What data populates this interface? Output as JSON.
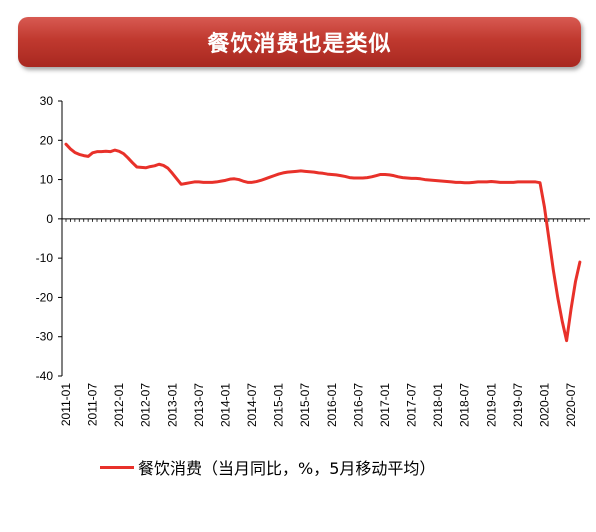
{
  "banner": {
    "title": "餐饮消费也是类似"
  },
  "colors": {
    "banner": "#c0392f",
    "line": "#e8312a",
    "axis": "#000000"
  },
  "chart_data": {
    "type": "line",
    "title": "餐饮消费也是类似",
    "xlabel": "",
    "ylabel": "",
    "ylim": [
      -40,
      30
    ],
    "yticks": [
      30,
      20,
      10,
      0,
      -10,
      -20,
      -30,
      -40
    ],
    "xtick_labels": [
      "2011-01",
      "2011-07",
      "2012-01",
      "2012-07",
      "2013-01",
      "2013-07",
      "2014-01",
      "2014-07",
      "2015-01",
      "2015-07",
      "2016-01",
      "2016-07",
      "2017-01",
      "2017-07",
      "2018-01",
      "2018-07",
      "2019-01",
      "2019-07",
      "2020-01",
      "2020-07"
    ],
    "grid": false,
    "legend_position": "bottom",
    "series": [
      {
        "name": "餐饮消费（当月同比，%，5月移动平均）",
        "points": [
          [
            "2011-01",
            19.0
          ],
          [
            "2011-02",
            17.8
          ],
          [
            "2011-03",
            16.9
          ],
          [
            "2011-04",
            16.4
          ],
          [
            "2011-05",
            16.1
          ],
          [
            "2011-06",
            15.9
          ],
          [
            "2011-07",
            16.8
          ],
          [
            "2011-08",
            17.1
          ],
          [
            "2011-09",
            17.1
          ],
          [
            "2011-10",
            17.2
          ],
          [
            "2011-11",
            17.1
          ],
          [
            "2011-12",
            17.5
          ],
          [
            "2012-01",
            17.2
          ],
          [
            "2012-02",
            16.6
          ],
          [
            "2012-03",
            15.5
          ],
          [
            "2012-04",
            14.3
          ],
          [
            "2012-05",
            13.2
          ],
          [
            "2012-06",
            13.1
          ],
          [
            "2012-07",
            13.0
          ],
          [
            "2012-08",
            13.3
          ],
          [
            "2012-09",
            13.5
          ],
          [
            "2012-10",
            13.9
          ],
          [
            "2012-11",
            13.6
          ],
          [
            "2012-12",
            12.9
          ],
          [
            "2013-01",
            11.6
          ],
          [
            "2013-02",
            10.2
          ],
          [
            "2013-03",
            8.8
          ],
          [
            "2013-04",
            9.0
          ],
          [
            "2013-05",
            9.2
          ],
          [
            "2013-06",
            9.4
          ],
          [
            "2013-07",
            9.4
          ],
          [
            "2013-08",
            9.3
          ],
          [
            "2013-09",
            9.3
          ],
          [
            "2013-10",
            9.3
          ],
          [
            "2013-11",
            9.4
          ],
          [
            "2013-12",
            9.6
          ],
          [
            "2014-01",
            9.8
          ],
          [
            "2014-02",
            10.1
          ],
          [
            "2014-03",
            10.2
          ],
          [
            "2014-04",
            10.0
          ],
          [
            "2014-05",
            9.6
          ],
          [
            "2014-06",
            9.3
          ],
          [
            "2014-07",
            9.3
          ],
          [
            "2014-08",
            9.5
          ],
          [
            "2014-09",
            9.8
          ],
          [
            "2014-10",
            10.2
          ],
          [
            "2014-11",
            10.6
          ],
          [
            "2014-12",
            11.0
          ],
          [
            "2015-01",
            11.4
          ],
          [
            "2015-02",
            11.7
          ],
          [
            "2015-03",
            11.9
          ],
          [
            "2015-04",
            12.0
          ],
          [
            "2015-05",
            12.1
          ],
          [
            "2015-06",
            12.2
          ],
          [
            "2015-07",
            12.1
          ],
          [
            "2015-08",
            12.0
          ],
          [
            "2015-09",
            11.9
          ],
          [
            "2015-10",
            11.7
          ],
          [
            "2015-11",
            11.6
          ],
          [
            "2015-12",
            11.4
          ],
          [
            "2016-01",
            11.3
          ],
          [
            "2016-02",
            11.2
          ],
          [
            "2016-03",
            11.0
          ],
          [
            "2016-04",
            10.8
          ],
          [
            "2016-05",
            10.5
          ],
          [
            "2016-06",
            10.4
          ],
          [
            "2016-07",
            10.4
          ],
          [
            "2016-08",
            10.4
          ],
          [
            "2016-09",
            10.5
          ],
          [
            "2016-10",
            10.7
          ],
          [
            "2016-11",
            11.0
          ],
          [
            "2016-12",
            11.3
          ],
          [
            "2017-01",
            11.3
          ],
          [
            "2017-02",
            11.2
          ],
          [
            "2017-03",
            11.0
          ],
          [
            "2017-04",
            10.7
          ],
          [
            "2017-05",
            10.5
          ],
          [
            "2017-06",
            10.4
          ],
          [
            "2017-07",
            10.3
          ],
          [
            "2017-08",
            10.3
          ],
          [
            "2017-09",
            10.2
          ],
          [
            "2017-10",
            10.0
          ],
          [
            "2017-11",
            9.9
          ],
          [
            "2017-12",
            9.8
          ],
          [
            "2018-01",
            9.7
          ],
          [
            "2018-02",
            9.6
          ],
          [
            "2018-03",
            9.5
          ],
          [
            "2018-04",
            9.4
          ],
          [
            "2018-05",
            9.3
          ],
          [
            "2018-06",
            9.3
          ],
          [
            "2018-07",
            9.2
          ],
          [
            "2018-08",
            9.2
          ],
          [
            "2018-09",
            9.3
          ],
          [
            "2018-10",
            9.4
          ],
          [
            "2018-11",
            9.4
          ],
          [
            "2018-12",
            9.4
          ],
          [
            "2019-01",
            9.5
          ],
          [
            "2019-02",
            9.4
          ],
          [
            "2019-03",
            9.3
          ],
          [
            "2019-04",
            9.3
          ],
          [
            "2019-05",
            9.3
          ],
          [
            "2019-06",
            9.3
          ],
          [
            "2019-07",
            9.4
          ],
          [
            "2019-08",
            9.4
          ],
          [
            "2019-09",
            9.4
          ],
          [
            "2019-10",
            9.4
          ],
          [
            "2019-11",
            9.4
          ],
          [
            "2019-12",
            9.2
          ],
          [
            "2020-01",
            3.0
          ],
          [
            "2020-02",
            -5.0
          ],
          [
            "2020-03",
            -13.0
          ],
          [
            "2020-04",
            -20.0
          ],
          [
            "2020-05",
            -26.0
          ],
          [
            "2020-06",
            -31.0
          ],
          [
            "2020-07",
            -23.0
          ],
          [
            "2020-08",
            -16.0
          ],
          [
            "2020-09",
            -11.0
          ]
        ]
      }
    ]
  }
}
